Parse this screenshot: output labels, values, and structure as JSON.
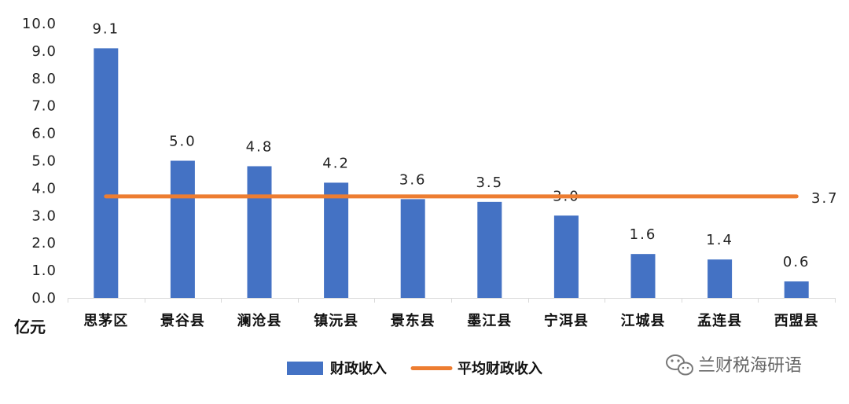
{
  "chart_data": {
    "type": "bar",
    "categories": [
      "思茅区",
      "景谷县",
      "澜沧县",
      "镇沅县",
      "景东县",
      "墨江县",
      "宁洱县",
      "江城县",
      "孟连县",
      "西盟县"
    ],
    "series": [
      {
        "name": "财政收入",
        "type": "bar",
        "values": [
          9.1,
          5.0,
          4.8,
          4.2,
          3.6,
          3.5,
          3.0,
          1.6,
          1.4,
          0.6
        ],
        "labels": [
          "9.1",
          "5.0",
          "4.8",
          "4.2",
          "3.6",
          "3.5",
          "3.0",
          "1.6",
          "1.4",
          "0.6"
        ],
        "color": "#4472C4"
      },
      {
        "name": "平均财政收入",
        "type": "line",
        "value": 3.7,
        "label": "3.7",
        "color": "#ED7D31"
      }
    ],
    "unit": "亿元",
    "ylim": [
      0,
      10
    ],
    "yticks": [
      "0.0",
      "1.0",
      "2.0",
      "3.0",
      "4.0",
      "5.0",
      "6.0",
      "7.0",
      "8.0",
      "9.0",
      "10.0"
    ],
    "grid": false,
    "legend_position": "bottom-center"
  },
  "watermark": {
    "text": "兰财税海研语",
    "icon": "wechat-icon"
  }
}
